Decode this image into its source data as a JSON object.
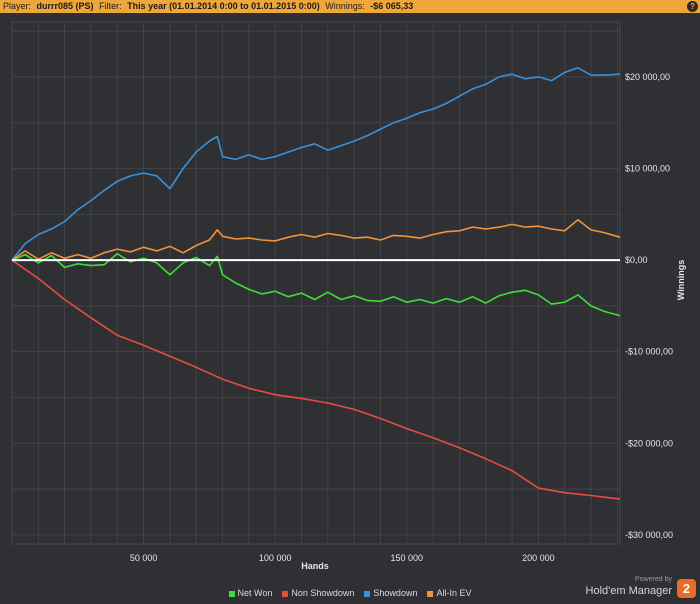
{
  "header": {
    "player_label": "Player:",
    "player_value": "durrr085 (PS)",
    "filter_label": "Filter:",
    "filter_value": "This year (01.01.2014 0:00 to 01.01.2015 0:00)",
    "winnings_label": "Winnings:",
    "winnings_value": "-$6 065,33",
    "help_icon": "?"
  },
  "brand": {
    "powered_by": "Powered by",
    "name": "Hold'em Manager",
    "badge": "2"
  },
  "colors": {
    "background": "#2f3034",
    "header": "#f0a73a",
    "grid": "#45474b",
    "zero_line": "#ffffff",
    "net_won": "#3fdc3a",
    "non_showdown": "#e64d43",
    "showdown": "#3a91d8",
    "all_in_ev": "#f0933a"
  },
  "chart_data": {
    "type": "line",
    "title": "",
    "xlabel": "Hands",
    "ylabel": "Winnings",
    "xlim": [
      0,
      231000
    ],
    "ylim": [
      -31000,
      26000
    ],
    "x_ticks": [
      50000,
      100000,
      150000,
      200000
    ],
    "x_tick_labels": [
      "50 000",
      "100 000",
      "150 000",
      "200 000"
    ],
    "y_ticks": [
      20000,
      10000,
      0,
      -10000,
      -20000,
      -30000
    ],
    "y_tick_labels": [
      "$20 000,00",
      "$10 000,00",
      "$0,00",
      "-$10 000,00",
      "-$20 000,00",
      "-$30 000,00"
    ],
    "grid": true,
    "legend_position": "bottom",
    "series": [
      {
        "name": "Net Won",
        "color": "#3fdc3a",
        "x": [
          0,
          5000,
          10000,
          15000,
          20000,
          25000,
          30000,
          35000,
          40000,
          45000,
          50000,
          55000,
          60000,
          65000,
          70000,
          75000,
          78000,
          80000,
          85000,
          90000,
          95000,
          100000,
          105000,
          110000,
          115000,
          120000,
          125000,
          130000,
          135000,
          140000,
          145000,
          150000,
          155000,
          160000,
          165000,
          170000,
          175000,
          180000,
          185000,
          190000,
          195000,
          200000,
          205000,
          210000,
          215000,
          220000,
          225000,
          231000
        ],
        "values": [
          0,
          600,
          -300,
          500,
          -800,
          -400,
          -600,
          -500,
          700,
          -200,
          200,
          -300,
          -1600,
          -300,
          300,
          -600,
          400,
          -1600,
          -2500,
          -3200,
          -3700,
          -3400,
          -4000,
          -3600,
          -4300,
          -3500,
          -4300,
          -3900,
          -4400,
          -4500,
          -4000,
          -4600,
          -4300,
          -4700,
          -4200,
          -4600,
          -4000,
          -4700,
          -3900,
          -3500,
          -3300,
          -3800,
          -4800,
          -4600,
          -3800,
          -5000,
          -5600,
          -6065
        ]
      },
      {
        "name": "Non Showdown",
        "color": "#e64d43",
        "x": [
          0,
          10000,
          20000,
          30000,
          40000,
          50000,
          60000,
          70000,
          80000,
          90000,
          100000,
          110000,
          120000,
          130000,
          140000,
          150000,
          160000,
          170000,
          180000,
          190000,
          200000,
          210000,
          220000,
          231000
        ],
        "values": [
          0,
          -2000,
          -4300,
          -6300,
          -8200,
          -9300,
          -10500,
          -11700,
          -13000,
          -14000,
          -14700,
          -15100,
          -15600,
          -16300,
          -17300,
          -18400,
          -19400,
          -20500,
          -21700,
          -23000,
          -24900,
          -25400,
          -25700,
          -26100
        ]
      },
      {
        "name": "Showdown",
        "color": "#3a91d8",
        "x": [
          0,
          5000,
          10000,
          15000,
          20000,
          25000,
          30000,
          35000,
          40000,
          45000,
          50000,
          55000,
          60000,
          65000,
          70000,
          75000,
          78000,
          80000,
          85000,
          90000,
          95000,
          100000,
          105000,
          110000,
          115000,
          120000,
          125000,
          130000,
          135000,
          140000,
          145000,
          150000,
          155000,
          160000,
          165000,
          170000,
          175000,
          180000,
          185000,
          190000,
          195000,
          200000,
          205000,
          210000,
          215000,
          220000,
          225000,
          231000
        ],
        "values": [
          0,
          1800,
          2800,
          3400,
          4200,
          5500,
          6500,
          7600,
          8600,
          9200,
          9500,
          9200,
          7800,
          10000,
          11800,
          13000,
          13500,
          11300,
          11000,
          11500,
          11000,
          11300,
          11800,
          12300,
          12700,
          12000,
          12500,
          13000,
          13600,
          14300,
          15000,
          15500,
          16100,
          16500,
          17100,
          17900,
          18700,
          19200,
          20000,
          20300,
          19800,
          20000,
          19600,
          20500,
          21000,
          20200,
          20200,
          20300
        ]
      },
      {
        "name": "All-In EV",
        "color": "#f0933a",
        "x": [
          0,
          5000,
          10000,
          15000,
          20000,
          25000,
          30000,
          35000,
          40000,
          45000,
          50000,
          55000,
          60000,
          65000,
          70000,
          75000,
          78000,
          80000,
          85000,
          90000,
          95000,
          100000,
          105000,
          110000,
          115000,
          120000,
          125000,
          130000,
          135000,
          140000,
          145000,
          150000,
          155000,
          160000,
          165000,
          170000,
          175000,
          180000,
          185000,
          190000,
          195000,
          200000,
          205000,
          210000,
          215000,
          220000,
          225000,
          231000
        ],
        "values": [
          0,
          1000,
          100,
          800,
          200,
          600,
          200,
          800,
          1200,
          900,
          1400,
          1000,
          1500,
          800,
          1600,
          2200,
          3300,
          2600,
          2300,
          2400,
          2200,
          2100,
          2500,
          2800,
          2500,
          2900,
          2700,
          2400,
          2500,
          2200,
          2700,
          2600,
          2400,
          2800,
          3100,
          3200,
          3600,
          3400,
          3600,
          3900,
          3600,
          3700,
          3400,
          3200,
          4400,
          3300,
          3000,
          2500
        ]
      }
    ]
  }
}
